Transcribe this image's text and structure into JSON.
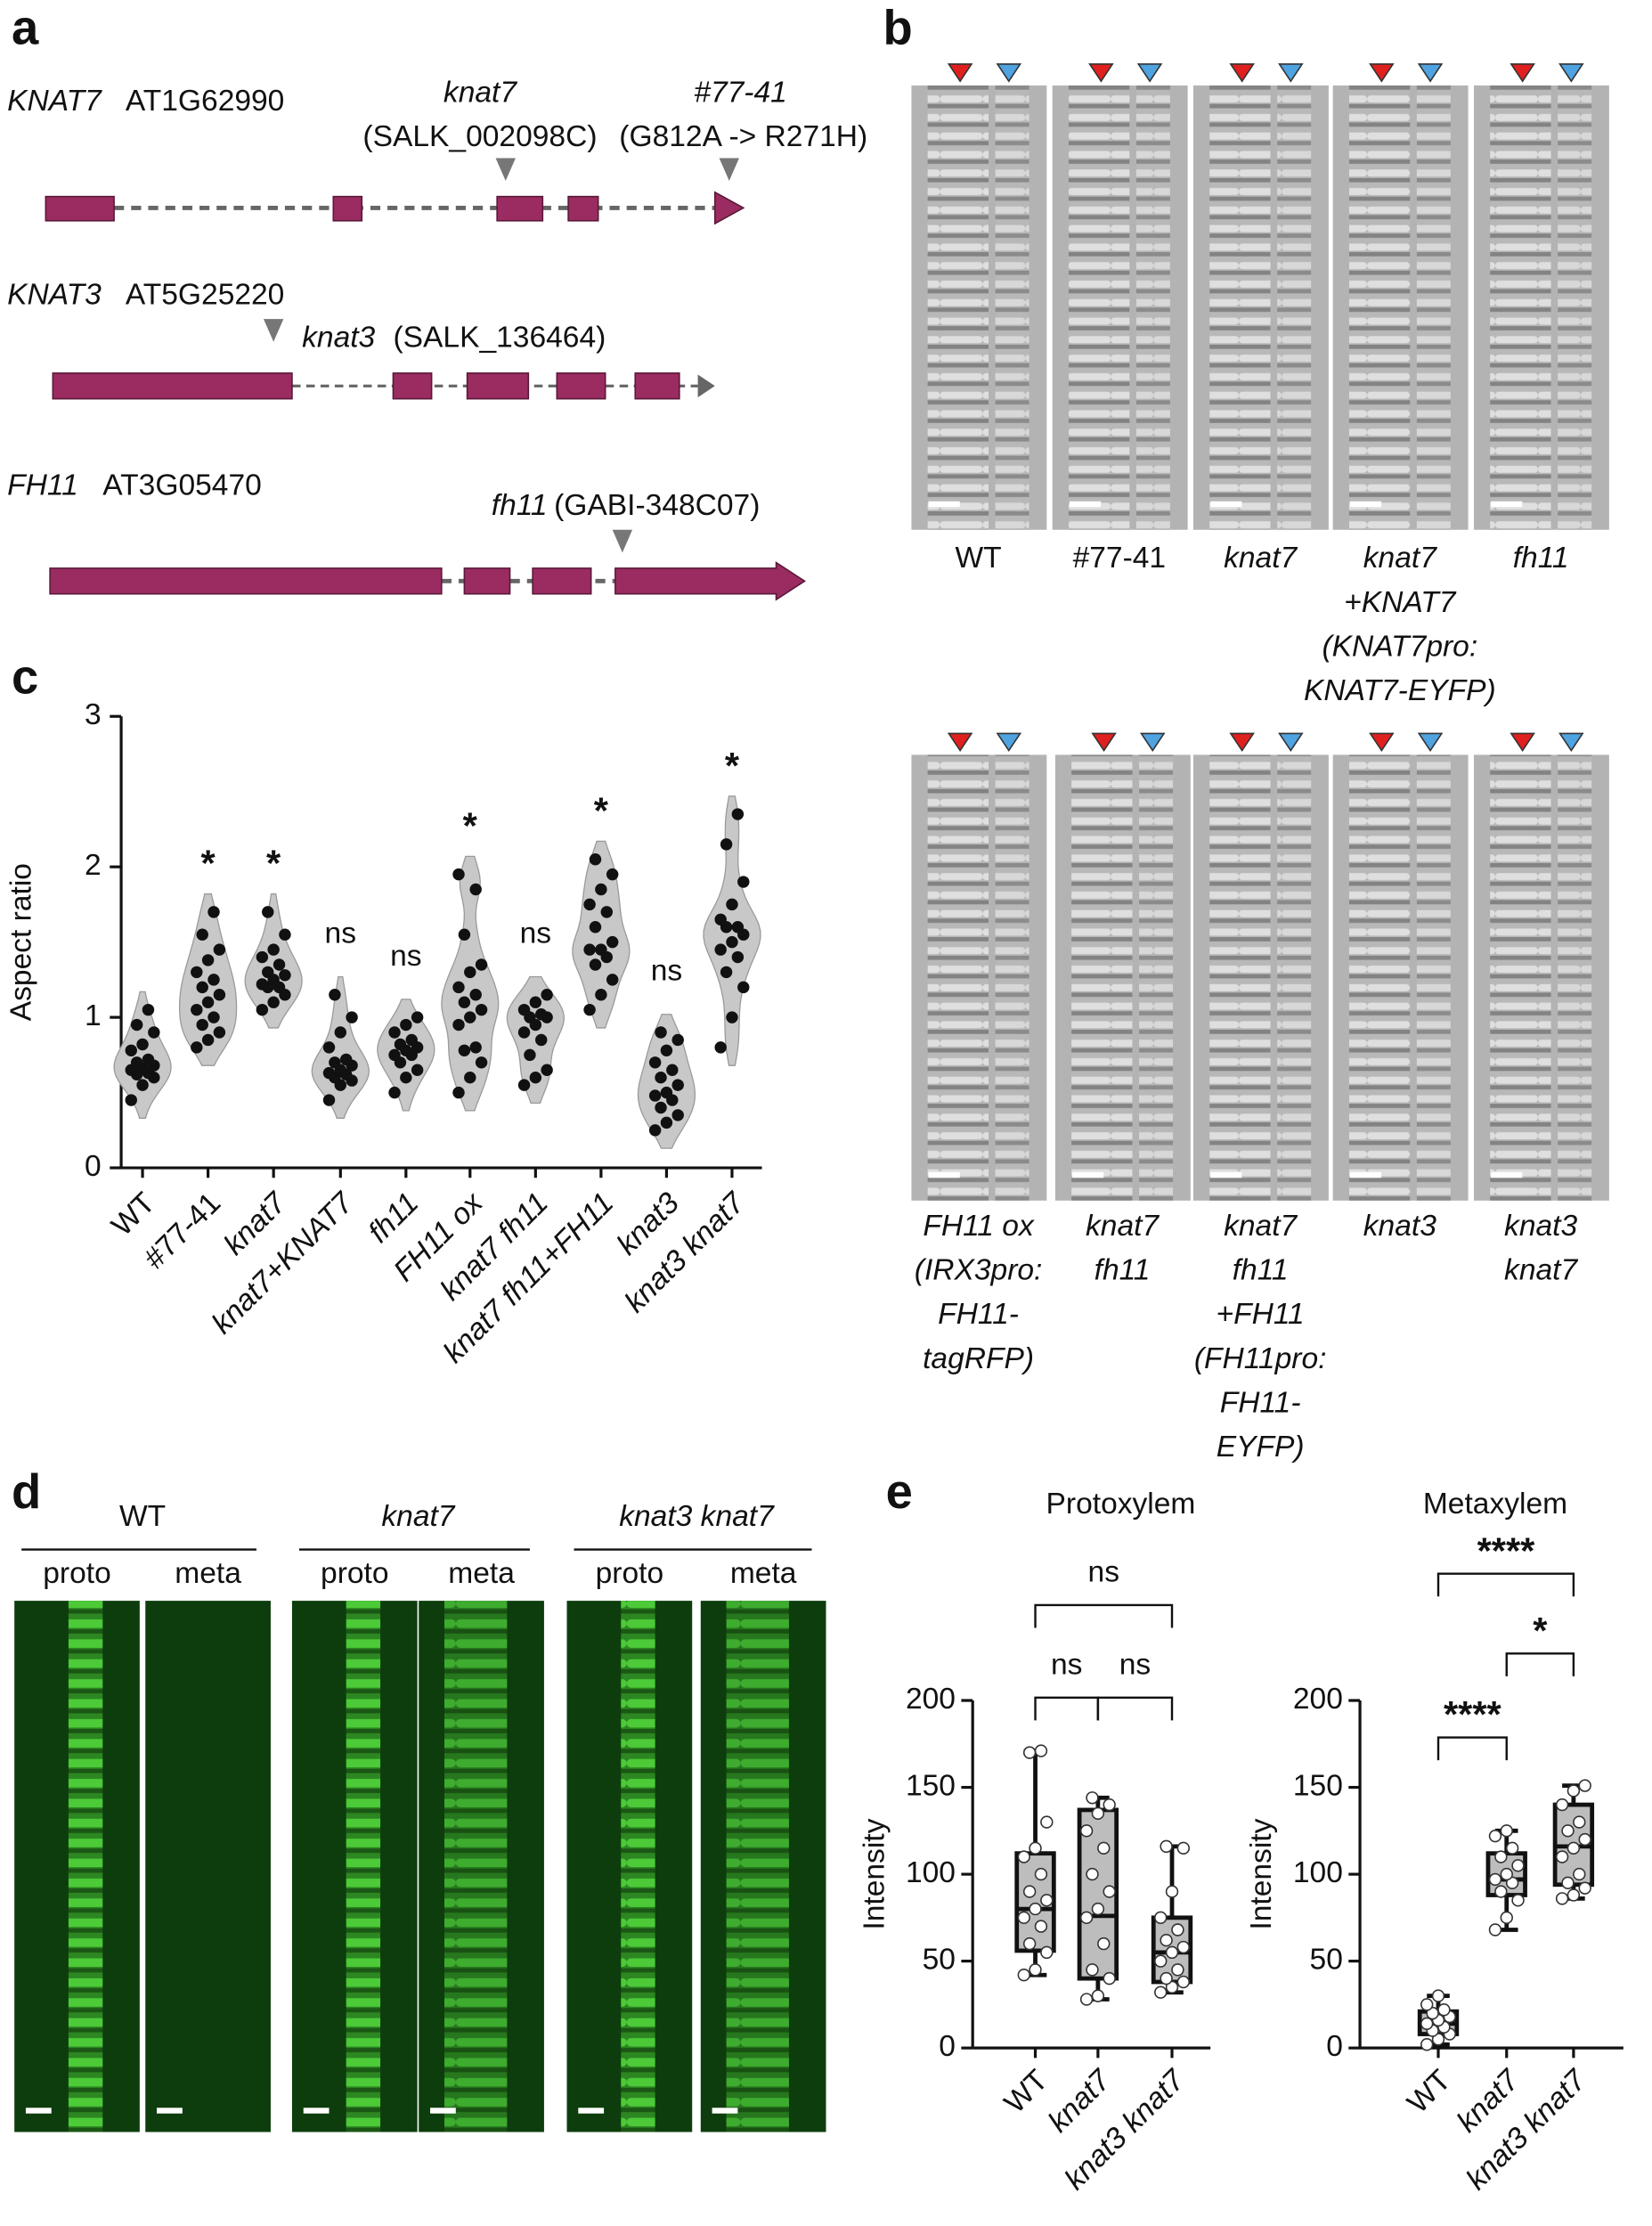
{
  "panel_labels": [
    "a",
    "b",
    "c",
    "d",
    "e"
  ],
  "gene_diagram": {
    "genes": [
      {
        "name": "KNAT7",
        "locus": "AT1G62990",
        "alleles": [
          {
            "name": "knat7",
            "detail": "(SALK_002098C)"
          },
          {
            "name": "#77-41",
            "detail": "(G812A -> R271H)"
          }
        ]
      },
      {
        "name": "KNAT3",
        "locus": "AT5G25220",
        "alleles": [
          {
            "name": "knat3",
            "detail": "(SALK_136464)"
          }
        ]
      },
      {
        "name": "FH11",
        "locus": "AT3G05470",
        "alleles": [
          {
            "name": "fh11",
            "detail": "(GABI-348C07)"
          }
        ]
      }
    ]
  },
  "micrographs_b": {
    "top": [
      [
        "WT"
      ],
      [
        "#77-41"
      ],
      [
        "knat7"
      ],
      [
        "knat7",
        "+KNAT7",
        "(KNAT7pro:",
        "KNAT7-EYFP)"
      ],
      [
        "fh11"
      ]
    ],
    "bottom": [
      [
        "FH11 ox",
        "(IRX3pro:",
        "FH11-",
        "tagRFP)"
      ],
      [
        "knat7",
        "fh11"
      ],
      [
        "knat7",
        "fh11",
        "+FH11",
        "(FH11pro:",
        "FH11-",
        "EYFP)"
      ],
      [
        "knat3"
      ],
      [
        "knat3",
        "knat7"
      ]
    ]
  },
  "micrographs_d": {
    "groups": [
      {
        "name": "WT",
        "panels": [
          "proto",
          "meta"
        ]
      },
      {
        "name": "knat7",
        "panels": [
          "proto",
          "meta"
        ]
      },
      {
        "name": "knat3 knat7",
        "panels": [
          "proto",
          "meta"
        ]
      }
    ]
  },
  "chart_data": [
    {
      "type": "violin",
      "y_label": "Aspect ratio",
      "categories": [
        "WT",
        "#77-41",
        "knat7",
        "knat7+KNAT7",
        "fh11",
        "FH11 ox",
        "knat7 fh11",
        "knat7 fh11+FH11",
        "knat3",
        "knat3 knat7"
      ],
      "annotations": [
        null,
        "*",
        "*",
        "ns",
        "ns",
        "*",
        "ns",
        "*",
        "ns",
        "*"
      ],
      "series": [
        {
          "values": [
            0.45,
            0.55,
            0.6,
            0.62,
            0.63,
            0.65,
            0.66,
            0.68,
            0.7,
            0.72,
            0.78,
            0.82,
            0.9,
            0.95,
            1.05
          ]
        },
        {
          "values": [
            0.8,
            0.85,
            0.9,
            0.95,
            1.0,
            1.05,
            1.1,
            1.15,
            1.2,
            1.25,
            1.3,
            1.38,
            1.45,
            1.55,
            1.7
          ]
        },
        {
          "values": [
            1.05,
            1.1,
            1.15,
            1.2,
            1.2,
            1.22,
            1.25,
            1.28,
            1.3,
            1.35,
            1.4,
            1.45,
            1.55,
            1.7
          ]
        },
        {
          "values": [
            0.45,
            0.55,
            0.58,
            0.6,
            0.62,
            0.63,
            0.65,
            0.68,
            0.7,
            0.72,
            0.8,
            0.9,
            1.0,
            1.15
          ]
        },
        {
          "values": [
            0.5,
            0.6,
            0.65,
            0.7,
            0.75,
            0.75,
            0.78,
            0.8,
            0.82,
            0.85,
            0.9,
            0.95,
            1.0
          ]
        },
        {
          "values": [
            0.5,
            0.6,
            0.7,
            0.78,
            0.8,
            0.95,
            1.0,
            1.05,
            1.1,
            1.15,
            1.2,
            1.3,
            1.35,
            1.55,
            1.85,
            1.95
          ]
        },
        {
          "values": [
            0.55,
            0.6,
            0.65,
            0.75,
            0.85,
            0.9,
            0.95,
            1.0,
            1.0,
            1.02,
            1.05,
            1.1,
            1.15
          ]
        },
        {
          "values": [
            1.05,
            1.15,
            1.25,
            1.35,
            1.4,
            1.45,
            1.45,
            1.5,
            1.6,
            1.7,
            1.75,
            1.85,
            1.95,
            2.05
          ]
        },
        {
          "values": [
            0.25,
            0.3,
            0.35,
            0.4,
            0.45,
            0.48,
            0.5,
            0.55,
            0.6,
            0.65,
            0.7,
            0.78,
            0.85,
            0.9
          ]
        },
        {
          "values": [
            0.8,
            1.0,
            1.2,
            1.3,
            1.4,
            1.45,
            1.5,
            1.55,
            1.6,
            1.6,
            1.65,
            1.75,
            1.9,
            2.15,
            2.35
          ]
        }
      ],
      "color": "#c8c8c8",
      "ylim": [
        0,
        3
      ],
      "yticks": [
        0,
        1,
        2,
        3
      ]
    },
    {
      "type": "box",
      "title": "Protoxylem",
      "y_label": "Intensity",
      "categories": [
        "WT",
        "knat7",
        "knat3 knat7"
      ],
      "boxes": [
        {
          "min": 42,
          "q1": 56,
          "median": 80,
          "q3": 112,
          "max": 171,
          "points": [
            42,
            45,
            55,
            60,
            70,
            75,
            80,
            85,
            90,
            100,
            110,
            115,
            130,
            170,
            171
          ]
        },
        {
          "min": 28,
          "q1": 40,
          "median": 76,
          "q3": 137,
          "max": 144,
          "points": [
            28,
            30,
            40,
            45,
            60,
            75,
            80,
            90,
            100,
            115,
            125,
            135,
            140,
            144
          ]
        },
        {
          "min": 32,
          "q1": 38,
          "median": 55,
          "q3": 75,
          "max": 116,
          "points": [
            32,
            35,
            38,
            40,
            45,
            50,
            55,
            58,
            62,
            68,
            75,
            90,
            115,
            116
          ]
        }
      ],
      "comparisons": [
        "ns",
        "ns",
        "ns"
      ],
      "color": "#bdbdbd",
      "ylim": [
        0,
        200
      ],
      "yticks": [
        0,
        50,
        100,
        150,
        200
      ]
    },
    {
      "type": "box",
      "title": "Metaxylem",
      "y_label": "Intensity",
      "categories": [
        "WT",
        "knat7",
        "knat3 knat7"
      ],
      "boxes": [
        {
          "min": 2,
          "q1": 8,
          "median": 14,
          "q3": 21,
          "max": 30,
          "points": [
            2,
            5,
            8,
            10,
            12,
            14,
            16,
            18,
            20,
            22,
            25,
            30
          ]
        },
        {
          "min": 68,
          "q1": 88,
          "median": 97,
          "q3": 112,
          "max": 125,
          "points": [
            68,
            75,
            85,
            90,
            95,
            97,
            100,
            105,
            110,
            115,
            122,
            125
          ]
        },
        {
          "min": 86,
          "q1": 94,
          "median": 116,
          "q3": 140,
          "max": 151,
          "points": [
            86,
            88,
            92,
            95,
            100,
            110,
            115,
            120,
            125,
            130,
            140,
            148,
            151
          ]
        }
      ],
      "comparisons": [
        "****",
        "*",
        "****"
      ],
      "color": "#bdbdbd",
      "ylim": [
        0,
        200
      ],
      "yticks": [
        0,
        50,
        100,
        150,
        200
      ]
    }
  ]
}
